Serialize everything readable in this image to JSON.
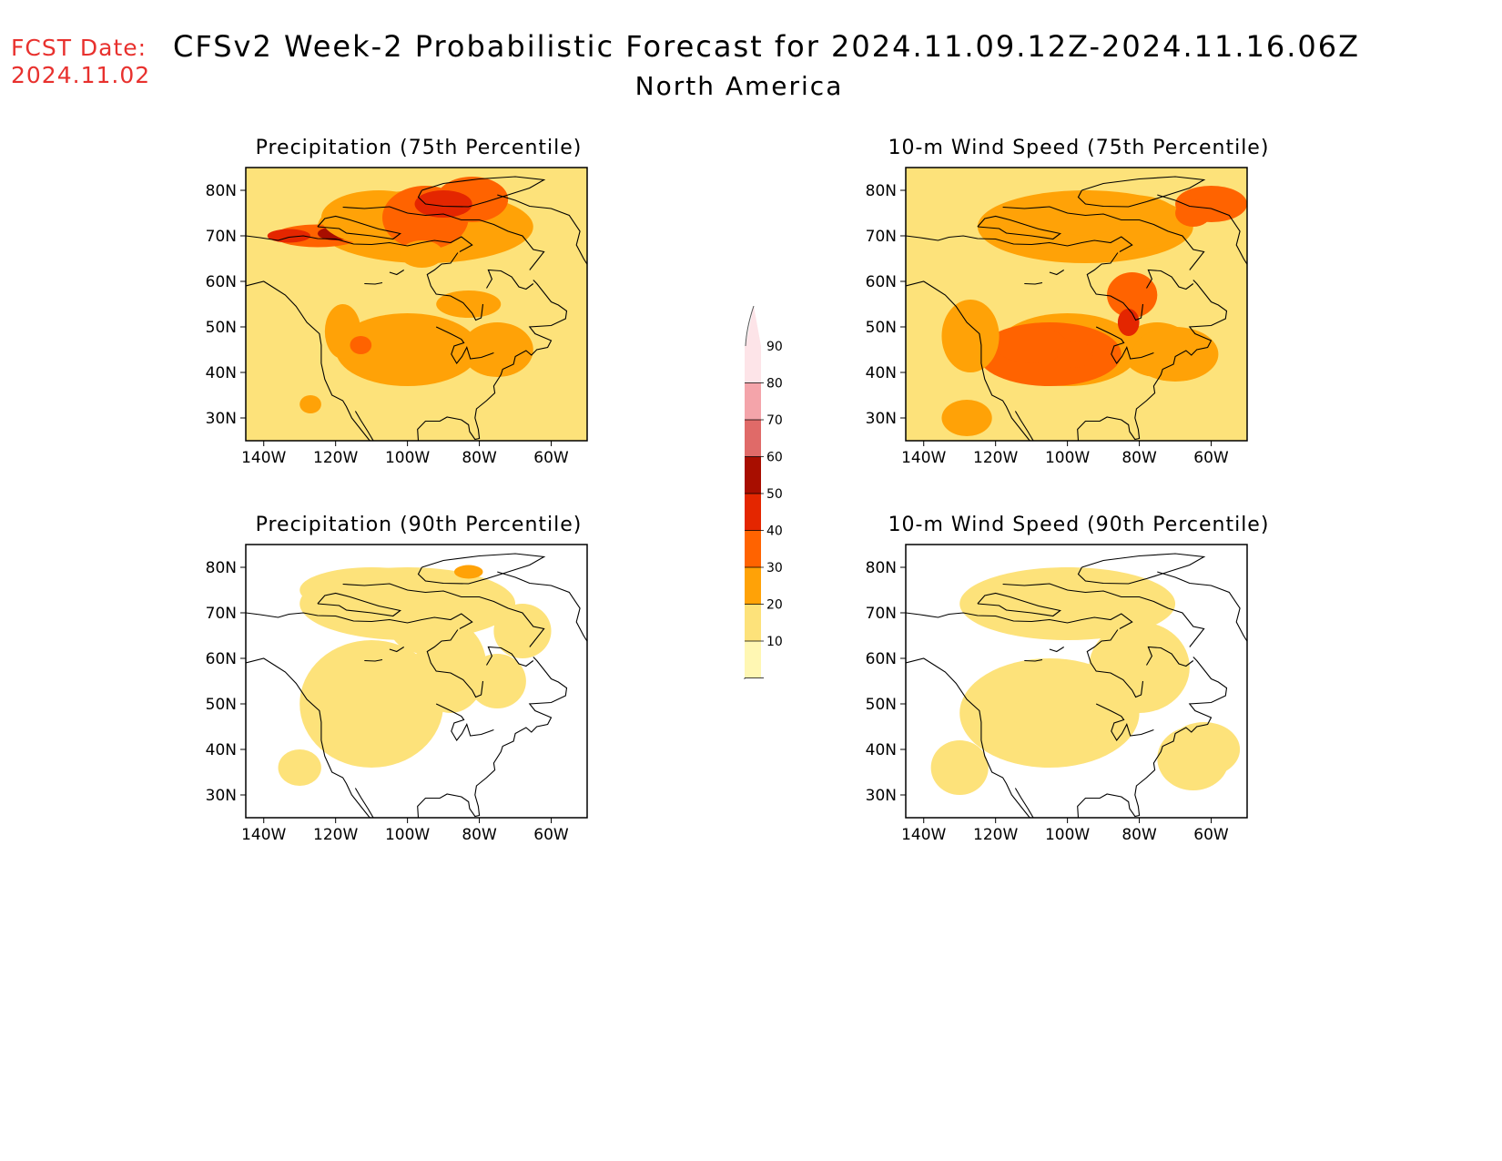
{
  "header": {
    "fcst_label": "FCST Date:",
    "fcst_date": "2024.11.02",
    "title": "CFSv2 Week-2 Probabilistic Forecast for 2024.11.09.12Z-2024.11.16.06Z",
    "subtitle": "North America"
  },
  "panels": [
    {
      "id": "precip75",
      "title": "Precipitation (75th Percentile)",
      "intensity": "high",
      "variant": "precip"
    },
    {
      "id": "wind75",
      "title": "10-m Wind Speed (75th Percentile)",
      "intensity": "high",
      "variant": "wind"
    },
    {
      "id": "precip90",
      "title": "Precipitation (90th Percentile)",
      "intensity": "low",
      "variant": "precip"
    },
    {
      "id": "wind90",
      "title": "10-m Wind Speed (90th Percentile)",
      "intensity": "low",
      "variant": "wind"
    }
  ],
  "axes": {
    "lat_labels": [
      "80N",
      "70N",
      "60N",
      "50N",
      "40N",
      "30N"
    ],
    "lon_labels": [
      "140W",
      "120W",
      "100W",
      "80W",
      "60W"
    ]
  },
  "colorbar": {
    "ticks": [
      "90",
      "80",
      "70",
      "60",
      "50",
      "40",
      "30",
      "20",
      "10"
    ],
    "colors": [
      "#fde4e8",
      "#f4a4aa",
      "#e06a68",
      "#a80e00",
      "#e42600",
      "#ff6300",
      "#ffa207",
      "#fde27a",
      "#fff7b3"
    ]
  }
}
